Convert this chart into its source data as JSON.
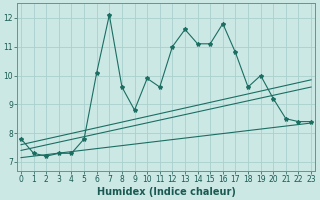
{
  "xlabel": "Humidex (Indice chaleur)",
  "ylabel": "",
  "background_color": "#cce8e5",
  "grid_color": "#aacfcc",
  "line_color": "#1a6e62",
  "x_values": [
    0,
    1,
    2,
    3,
    4,
    5,
    6,
    7,
    8,
    9,
    10,
    11,
    12,
    13,
    14,
    15,
    16,
    17,
    18,
    19,
    20,
    21,
    22,
    23
  ],
  "y_main": [
    7.8,
    7.3,
    7.2,
    7.3,
    7.3,
    7.8,
    10.1,
    12.1,
    9.6,
    8.8,
    9.9,
    9.6,
    11.0,
    11.6,
    11.1,
    11.1,
    11.8,
    10.8,
    9.6,
    10.0,
    9.2,
    8.5,
    8.4,
    8.4
  ],
  "trend_lines": [
    {
      "x0": 0,
      "y0": 7.15,
      "x1": 23,
      "y1": 8.35
    },
    {
      "x0": 0,
      "y0": 7.4,
      "x1": 23,
      "y1": 9.6
    },
    {
      "x0": 0,
      "y0": 7.6,
      "x1": 23,
      "y1": 9.85
    }
  ],
  "xlim": [
    -0.3,
    23.3
  ],
  "ylim": [
    6.7,
    12.5
  ],
  "yticks": [
    7,
    8,
    9,
    10,
    11,
    12
  ],
  "xticks": [
    0,
    1,
    2,
    3,
    4,
    5,
    6,
    7,
    8,
    9,
    10,
    11,
    12,
    13,
    14,
    15,
    16,
    17,
    18,
    19,
    20,
    21,
    22,
    23
  ],
  "tick_fontsize": 5.5,
  "xlabel_fontsize": 7.0
}
